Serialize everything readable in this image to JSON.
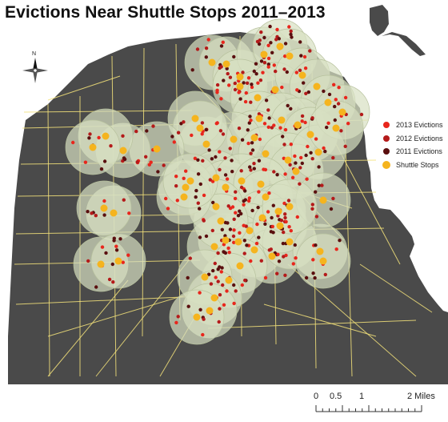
{
  "title": "Evictions Near Shuttle Stops 2011–2013",
  "colors": {
    "land": "#4a4a4a",
    "water": "#ffffff",
    "roads": "#f3e27a",
    "buffer_fill": "#d7e0c2",
    "eviction_2013": "#e8261c",
    "eviction_2012": "#b41a1a",
    "eviction_2011": "#5a0f0f",
    "shuttle_stop": "#f5b41e"
  },
  "legend": {
    "items": [
      {
        "label": "2013 Evictions",
        "color": "#e8261c",
        "kind": "eviction"
      },
      {
        "label": "2012 Evictions",
        "color": "#b41a1a",
        "kind": "eviction"
      },
      {
        "label": "2011 Evictions",
        "color": "#5a0f0f",
        "kind": "eviction"
      },
      {
        "label": "Shuttle Stops",
        "color": "#f5b41e",
        "kind": "stop"
      }
    ]
  },
  "north_arrow": {
    "label": "N",
    "icon": "north-arrow-icon"
  },
  "scale_bar": {
    "labels": [
      "0",
      "0.5",
      "1",
      "2 Miles"
    ],
    "values": [
      0,
      0.5,
      1,
      2
    ],
    "unit": "Miles"
  }
}
